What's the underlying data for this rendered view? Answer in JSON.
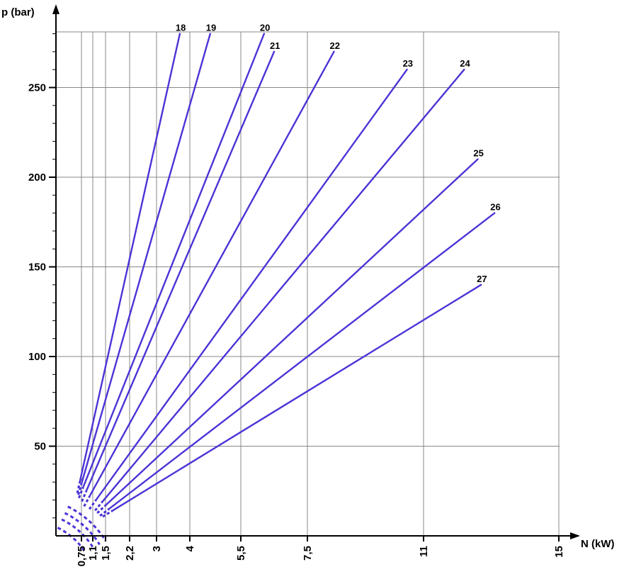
{
  "chart_data": {
    "type": "line",
    "title": "",
    "xlabel": "N (kW)",
    "ylabel": "p (bar)",
    "x_ticks": [
      "0,75",
      "1,1",
      "1,5",
      "2,2",
      "3",
      "4",
      "5,5",
      "7,5",
      "11",
      "15"
    ],
    "y_ticks": [
      "50",
      "100",
      "150",
      "200",
      "250"
    ],
    "xlim": [
      0,
      15
    ],
    "ylim": [
      0,
      280
    ],
    "x_scale": "nonlinear (categorical gridlines)",
    "grid": true,
    "legend": "none (series labelled at line ends)",
    "line_color": "#4a34d6",
    "series": [
      {
        "name": "18",
        "start": [
          0.7,
          30
        ],
        "end": [
          3.7,
          280
        ]
      },
      {
        "name": "19",
        "start": [
          0.75,
          29
        ],
        "end": [
          4.6,
          280
        ]
      },
      {
        "name": "20",
        "start": [
          0.8,
          27
        ],
        "end": [
          6.2,
          280
        ]
      },
      {
        "name": "21",
        "start": [
          0.9,
          25
        ],
        "end": [
          6.5,
          270
        ]
      },
      {
        "name": "22",
        "start": [
          1.0,
          22
        ],
        "end": [
          8.3,
          270
        ]
      },
      {
        "name": "23",
        "start": [
          1.2,
          20
        ],
        "end": [
          10.5,
          260
        ]
      },
      {
        "name": "24",
        "start": [
          1.4,
          19
        ],
        "end": [
          12.2,
          260
        ]
      },
      {
        "name": "25",
        "start": [
          1.5,
          17
        ],
        "end": [
          12.6,
          210
        ]
      },
      {
        "name": "26",
        "start": [
          1.6,
          15
        ],
        "end": [
          13.1,
          180
        ]
      },
      {
        "name": "27",
        "start": [
          1.7,
          14
        ],
        "end": [
          12.7,
          140
        ]
      }
    ]
  }
}
